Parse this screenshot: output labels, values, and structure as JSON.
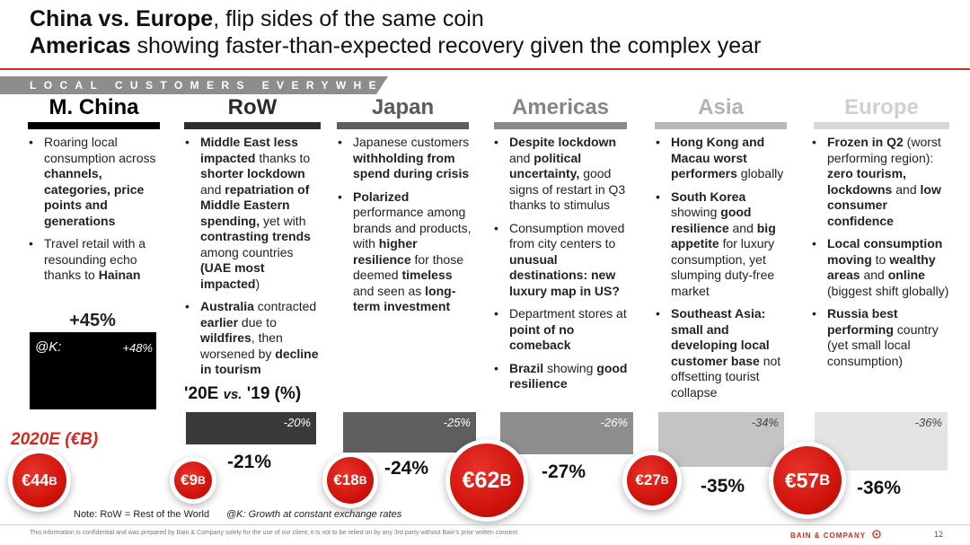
{
  "header": {
    "line1_bold": "China vs. Europe",
    "line1_rest": ", flip sides of the same coin",
    "line2_bold": "Americas",
    "line2_rest": " showing faster-than-expected recovery given the complex year"
  },
  "banner": "LOCAL CUSTOMERS EVERYWHERE",
  "columns": [
    {
      "name": "M. China",
      "head_color": "#000000",
      "bar_color": "#000000"
    },
    {
      "name": "RoW",
      "head_color": "#2b2b2b",
      "bar_color": "#2e2e2e"
    },
    {
      "name": "Japan",
      "head_color": "#5a5a5a",
      "bar_color": "#5e5e5e"
    },
    {
      "name": "Americas",
      "head_color": "#858585",
      "bar_color": "#8a8a8a"
    },
    {
      "name": "Asia",
      "head_color": "#b3b3b3",
      "bar_color": "#b8b8b8"
    },
    {
      "name": "Europe",
      "head_color": "#d0d0d0",
      "bar_color": "#d8d8d8"
    }
  ],
  "bullets": {
    "china": [
      [
        "Roaring local consumption across ",
        "channels, categories, price points and generations"
      ],
      [
        "Travel retail with a resounding echo thanks to ",
        "Hainan"
      ]
    ],
    "row": [
      [
        "",
        "Middle East less impacted",
        " thanks to ",
        "shorter lockdown",
        " and ",
        "repatriation of Middle Eastern spending,",
        " yet with ",
        "contrasting trends",
        " among countries ",
        "(UAE most impacted",
        ")"
      ],
      [
        "",
        "Australia",
        " contracted ",
        "earlier",
        " due to ",
        "wildfires",
        ", then worsened by ",
        "decline in tourism"
      ]
    ],
    "japan": [
      [
        "Japanese customers ",
        "withholding from spend during crisis"
      ],
      [
        "",
        "Polarized",
        " performance among brands and products, with ",
        "higher resilience",
        " for those deemed ",
        "timeless",
        " and seen as ",
        "long-term investment"
      ]
    ],
    "americas": [
      [
        "",
        "Despite lockdown",
        " and ",
        "political uncertainty,",
        " good signs of restart in Q3 thanks to stimulus"
      ],
      [
        "Consumption moved from city centers to ",
        "unusual destinations: new luxury map in US?"
      ],
      [
        "Department stores at ",
        "point of no comeback"
      ],
      [
        "",
        "Brazil",
        " showing ",
        "good resilience"
      ]
    ],
    "asia": [
      [
        "",
        "Hong Kong and Macau worst performers",
        " globally"
      ],
      [
        "",
        "South Korea",
        " showing ",
        "good resilience",
        " and ",
        "big appetite",
        " for luxury consumption, yet slumping duty-free market"
      ],
      [
        "",
        "Southeast Asia: small and developing local customer base",
        " not offsetting tourist collapse"
      ]
    ],
    "europe": [
      [
        "",
        "Frozen in Q2",
        " (worst performing region): ",
        "zero tourism,",
        " ",
        "lockdowns",
        " and ",
        "low consumer confidence"
      ],
      [
        "",
        "Local consumption moving",
        " to ",
        "wealthy areas",
        " and ",
        "online",
        " (biggest shift globally)"
      ],
      [
        "",
        "Russia best performing",
        " country (yet small local consumption)"
      ]
    ]
  },
  "china_growth_label": "+45%",
  "china_k_label": "@K:",
  "china_k_value": "+48%",
  "growth_heading_a": "'20E ",
  "growth_heading_b": "vs.",
  "growth_heading_c": " '19 (%)",
  "revenue_heading": "2020E (€B)",
  "chart_data": {
    "type": "bar",
    "categories": [
      "M. China",
      "RoW",
      "Japan",
      "Americas",
      "Asia",
      "Europe"
    ],
    "series": [
      {
        "name": "@K:",
        "values": [
          48,
          -20,
          -25,
          -26,
          -34,
          -36
        ],
        "labels": [
          "+48%",
          "-20%",
          "-25%",
          "-26%",
          "-34%",
          "-36%"
        ]
      }
    ],
    "growth_labels": [
      "+45%",
      "-21%",
      "-24%",
      "-27%",
      "-35%",
      "-36%"
    ],
    "revenue_2020E_B": [
      44,
      9,
      18,
      62,
      27,
      57
    ],
    "revenue_labels": [
      "€44",
      "€9",
      "€18",
      "€62",
      "€27",
      "€57"
    ],
    "revenue_unit": "B"
  },
  "note_row": "Note: RoW = Rest of the World",
  "note_k": "@K: Growth at constant exchange rates",
  "footer_text": "This information is confidential and was prepared by Bain & Company solely for the use of our client; it is not to be relied on by any 3rd party without Bain's prior written consent",
  "logo": "BAIN & COMPANY",
  "page": "12"
}
